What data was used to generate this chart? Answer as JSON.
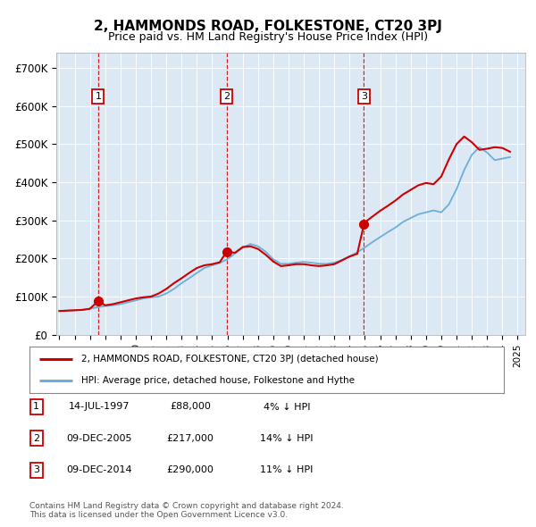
{
  "title": "2, HAMMONDS ROAD, FOLKESTONE, CT20 3PJ",
  "subtitle": "Price paid vs. HM Land Registry's House Price Index (HPI)",
  "plot_bg_color": "#dce9f5",
  "yticks": [
    0,
    100000,
    200000,
    300000,
    400000,
    500000,
    600000,
    700000
  ],
  "ytick_labels": [
    "£0",
    "£100K",
    "£200K",
    "£300K",
    "£400K",
    "£500K",
    "£600K",
    "£700K"
  ],
  "xmin": 1994.8,
  "xmax": 2025.5,
  "ymin": 0,
  "ymax": 740000,
  "sale_dates": [
    1997.54,
    2005.94,
    2014.94
  ],
  "sale_prices": [
    88000,
    217000,
    290000
  ],
  "sale_labels": [
    "1",
    "2",
    "3"
  ],
  "hpi_line_color": "#6baed6",
  "price_line_color": "#cc0000",
  "sale_point_color": "#cc0000",
  "dashed_line_color": "#cc0000",
  "legend_label_red": "2, HAMMONDS ROAD, FOLKESTONE, CT20 3PJ (detached house)",
  "legend_label_blue": "HPI: Average price, detached house, Folkestone and Hythe",
  "table_rows": [
    {
      "num": "1",
      "date": "14-JUL-1997",
      "price": "£88,000",
      "hpi": "4% ↓ HPI"
    },
    {
      "num": "2",
      "date": "09-DEC-2005",
      "price": "£217,000",
      "hpi": "14% ↓ HPI"
    },
    {
      "num": "3",
      "date": "09-DEC-2014",
      "price": "£290,000",
      "hpi": "11% ↓ HPI"
    }
  ],
  "footnote": "Contains HM Land Registry data © Crown copyright and database right 2024.\nThis data is licensed under the Open Government Licence v3.0.",
  "hpi_years": [
    1995.0,
    1995.5,
    1996.0,
    1996.5,
    1997.0,
    1997.5,
    1998.0,
    1998.5,
    1999.0,
    1999.5,
    2000.0,
    2000.5,
    2001.0,
    2001.5,
    2002.0,
    2002.5,
    2003.0,
    2003.5,
    2004.0,
    2004.5,
    2005.0,
    2005.5,
    2006.0,
    2006.5,
    2007.0,
    2007.5,
    2008.0,
    2008.5,
    2009.0,
    2009.5,
    2010.0,
    2010.5,
    2011.0,
    2011.5,
    2012.0,
    2012.5,
    2013.0,
    2013.5,
    2014.0,
    2014.5,
    2015.0,
    2015.5,
    2016.0,
    2016.5,
    2017.0,
    2017.5,
    2018.0,
    2018.5,
    2019.0,
    2019.5,
    2020.0,
    2020.5,
    2021.0,
    2021.5,
    2022.0,
    2022.5,
    2023.0,
    2023.5,
    2024.0,
    2024.5
  ],
  "hpi_values": [
    62000,
    63000,
    64000,
    65000,
    68000,
    72000,
    75000,
    77000,
    80000,
    85000,
    90000,
    95000,
    98000,
    100000,
    108000,
    120000,
    135000,
    148000,
    162000,
    175000,
    182000,
    188000,
    198000,
    213000,
    228000,
    238000,
    232000,
    218000,
    198000,
    186000,
    186000,
    189000,
    191000,
    189000,
    186000,
    186000,
    189000,
    196000,
    206000,
    216000,
    229000,
    243000,
    256000,
    269000,
    281000,
    296000,
    306000,
    316000,
    321000,
    326000,
    321000,
    342000,
    382000,
    432000,
    472000,
    492000,
    478000,
    458000,
    462000,
    466000
  ],
  "price_years": [
    1995.0,
    1995.5,
    1996.0,
    1996.5,
    1997.0,
    1997.54,
    1998.0,
    1998.5,
    1999.0,
    1999.5,
    2000.0,
    2000.5,
    2001.0,
    2001.5,
    2002.0,
    2002.5,
    2003.0,
    2003.5,
    2004.0,
    2004.5,
    2005.0,
    2005.5,
    2005.94,
    2006.0,
    2006.5,
    2007.0,
    2007.5,
    2008.0,
    2008.5,
    2009.0,
    2009.5,
    2010.0,
    2010.5,
    2011.0,
    2011.5,
    2012.0,
    2012.5,
    2013.0,
    2013.5,
    2014.0,
    2014.5,
    2014.94,
    2015.0,
    2015.5,
    2016.0,
    2016.5,
    2017.0,
    2017.5,
    2018.0,
    2018.5,
    2019.0,
    2019.5,
    2020.0,
    2020.5,
    2021.0,
    2021.5,
    2022.0,
    2022.5,
    2023.0,
    2023.5,
    2024.0,
    2024.5
  ],
  "price_values": [
    62000,
    63000,
    64000,
    65000,
    68000,
    88000,
    77000,
    80000,
    85000,
    90000,
    95000,
    98000,
    100000,
    108000,
    120000,
    135000,
    148000,
    162000,
    175000,
    182000,
    185000,
    190000,
    217000,
    217000,
    215000,
    230000,
    232000,
    225000,
    210000,
    192000,
    180000,
    182000,
    185000,
    185000,
    182000,
    180000,
    182000,
    185000,
    195000,
    205000,
    212000,
    290000,
    295000,
    310000,
    325000,
    338000,
    352000,
    368000,
    380000,
    392000,
    398000,
    395000,
    415000,
    460000,
    500000,
    520000,
    505000,
    485000,
    488000,
    492000,
    490000,
    480000
  ]
}
